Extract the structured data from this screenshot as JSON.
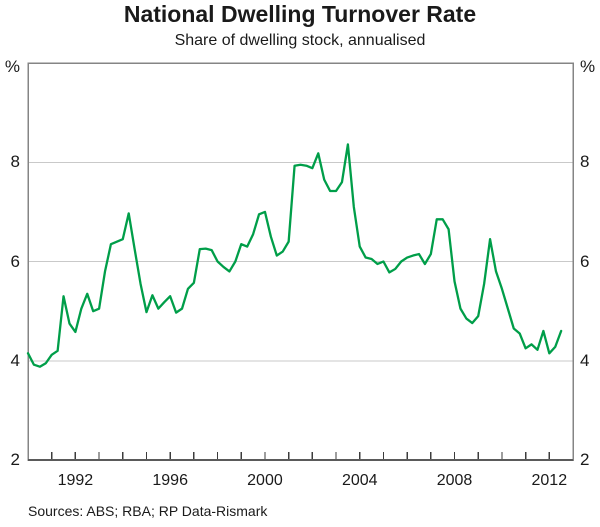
{
  "page": {
    "title": "National Dwelling Turnover Rate",
    "subtitle": "Share of dwelling stock, annualised",
    "footer": "Sources: ABS; RBA; RP Data-Rismark"
  },
  "axes": {
    "y_unit_left": "%",
    "y_unit_right": "%",
    "y_tick_labels": [
      "8",
      "6",
      "4",
      "2"
    ],
    "x_tick_labels": [
      "1992",
      "1996",
      "2000",
      "2004",
      "2008",
      "2012"
    ]
  },
  "colors": {
    "line": "#009e49",
    "gridline": "#c9c9c9",
    "frame": "#858585",
    "bottom_axis": "#5a5a5a",
    "tick": "#3c3c3c",
    "text": "#1a1a1a"
  },
  "chart_data": {
    "type": "line",
    "title": "National Dwelling Turnover Rate",
    "subtitle": "Share of dwelling stock, annualised",
    "xlabel": "",
    "ylabel": "% (share of dwelling stock, annualised)",
    "ylim": [
      2,
      10
    ],
    "xlim": [
      1990,
      2013
    ],
    "y_gridlines": [
      4,
      6,
      8
    ],
    "y_labeled_ticks": [
      2,
      4,
      6,
      8
    ],
    "x_labeled_ticks": [
      1992,
      1996,
      2000,
      2004,
      2008,
      2012
    ],
    "x_minor_tick_every_years": 1,
    "grid": "horizontal-only",
    "legend_position": "none",
    "series": [
      {
        "name": "National dwelling turnover rate",
        "color": "#009e49",
        "points": [
          [
            1990.0,
            4.15
          ],
          [
            1990.25,
            3.92
          ],
          [
            1990.5,
            3.88
          ],
          [
            1990.75,
            3.95
          ],
          [
            1991.0,
            4.12
          ],
          [
            1991.25,
            4.2
          ],
          [
            1991.5,
            5.3
          ],
          [
            1991.75,
            4.75
          ],
          [
            1992.0,
            4.58
          ],
          [
            1992.25,
            5.05
          ],
          [
            1992.5,
            5.35
          ],
          [
            1992.75,
            5.0
          ],
          [
            1993.0,
            5.05
          ],
          [
            1993.25,
            5.8
          ],
          [
            1993.5,
            6.35
          ],
          [
            1993.75,
            6.4
          ],
          [
            1994.0,
            6.45
          ],
          [
            1994.25,
            6.97
          ],
          [
            1994.5,
            6.25
          ],
          [
            1994.75,
            5.55
          ],
          [
            1995.0,
            4.98
          ],
          [
            1995.25,
            5.32
          ],
          [
            1995.5,
            5.05
          ],
          [
            1995.75,
            5.18
          ],
          [
            1996.0,
            5.3
          ],
          [
            1996.25,
            4.97
          ],
          [
            1996.5,
            5.05
          ],
          [
            1996.75,
            5.45
          ],
          [
            1997.0,
            5.57
          ],
          [
            1997.25,
            6.25
          ],
          [
            1997.5,
            6.26
          ],
          [
            1997.75,
            6.23
          ],
          [
            1998.0,
            6.0
          ],
          [
            1998.25,
            5.89
          ],
          [
            1998.5,
            5.8
          ],
          [
            1998.75,
            6.0
          ],
          [
            1999.0,
            6.35
          ],
          [
            1999.25,
            6.3
          ],
          [
            1999.5,
            6.55
          ],
          [
            1999.75,
            6.95
          ],
          [
            2000.0,
            7.0
          ],
          [
            2000.25,
            6.5
          ],
          [
            2000.5,
            6.12
          ],
          [
            2000.75,
            6.2
          ],
          [
            2001.0,
            6.4
          ],
          [
            2001.25,
            7.93
          ],
          [
            2001.5,
            7.95
          ],
          [
            2001.75,
            7.93
          ],
          [
            2002.0,
            7.88
          ],
          [
            2002.25,
            8.18
          ],
          [
            2002.5,
            7.65
          ],
          [
            2002.75,
            7.42
          ],
          [
            2003.0,
            7.42
          ],
          [
            2003.25,
            7.6
          ],
          [
            2003.5,
            8.36
          ],
          [
            2003.75,
            7.1
          ],
          [
            2004.0,
            6.3
          ],
          [
            2004.25,
            6.08
          ],
          [
            2004.5,
            6.05
          ],
          [
            2004.75,
            5.95
          ],
          [
            2005.0,
            6.0
          ],
          [
            2005.25,
            5.78
          ],
          [
            2005.5,
            5.85
          ],
          [
            2005.75,
            6.0
          ],
          [
            2006.0,
            6.08
          ],
          [
            2006.25,
            6.12
          ],
          [
            2006.5,
            6.15
          ],
          [
            2006.75,
            5.95
          ],
          [
            2007.0,
            6.15
          ],
          [
            2007.25,
            6.85
          ],
          [
            2007.5,
            6.85
          ],
          [
            2007.75,
            6.65
          ],
          [
            2008.0,
            5.6
          ],
          [
            2008.25,
            5.05
          ],
          [
            2008.5,
            4.85
          ],
          [
            2008.75,
            4.76
          ],
          [
            2009.0,
            4.9
          ],
          [
            2009.25,
            5.55
          ],
          [
            2009.5,
            6.45
          ],
          [
            2009.75,
            5.8
          ],
          [
            2010.0,
            5.45
          ],
          [
            2010.25,
            5.05
          ],
          [
            2010.5,
            4.65
          ],
          [
            2010.75,
            4.55
          ],
          [
            2011.0,
            4.25
          ],
          [
            2011.25,
            4.33
          ],
          [
            2011.5,
            4.22
          ],
          [
            2011.75,
            4.6
          ],
          [
            2012.0,
            4.15
          ],
          [
            2012.25,
            4.28
          ],
          [
            2012.5,
            4.6
          ]
        ]
      }
    ]
  }
}
